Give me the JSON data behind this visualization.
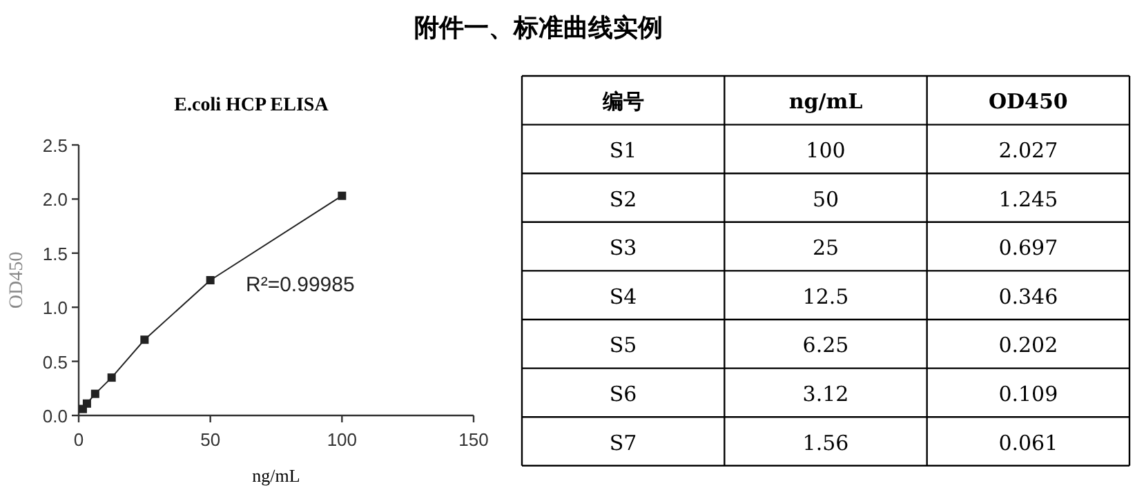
{
  "chart_data": [
    {
      "type": "line",
      "title": "附件一、标准曲线实例",
      "subtitle": "E.coli HCP ELISA",
      "xlabel": "ng/mL",
      "ylabel": "OD450",
      "x": [
        100,
        50,
        25,
        12.5,
        6.25,
        3.12,
        1.56
      ],
      "series": [
        {
          "color": "#222222",
          "values": [
            2.03,
            1.25,
            0.7,
            0.35,
            0.2,
            0.11,
            0.06
          ]
        }
      ],
      "marker": "square",
      "line_style": "solid",
      "xlim": [
        0,
        150
      ],
      "xticks": [
        0,
        50,
        100,
        150
      ],
      "ylim": [
        0,
        2.5
      ],
      "yticks": [
        {
          "value": 0,
          "label": "0.0"
        },
        0.5,
        {
          "value": 1,
          "label": "1.0"
        },
        1.5,
        {
          "value": 2,
          "label": "2.0"
        },
        2.5
      ],
      "annotations": [
        "R²=0.99985"
      ]
    },
    {
      "type": "other",
      "xlabel": "编号",
      "categories": [
        "S1",
        "S2",
        "S3",
        "S4",
        "S5",
        "S6",
        "S7"
      ],
      "series": [
        {
          "name": "ng/mL",
          "values": [
            100,
            50,
            25,
            12.5,
            6.25,
            3.12,
            1.56
          ]
        },
        {
          "name": "OD450",
          "values": [
            2.027,
            1.245,
            0.697,
            0.346,
            0.202,
            0.109,
            0.061
          ]
        }
      ],
      "data_labels": true
    }
  ]
}
